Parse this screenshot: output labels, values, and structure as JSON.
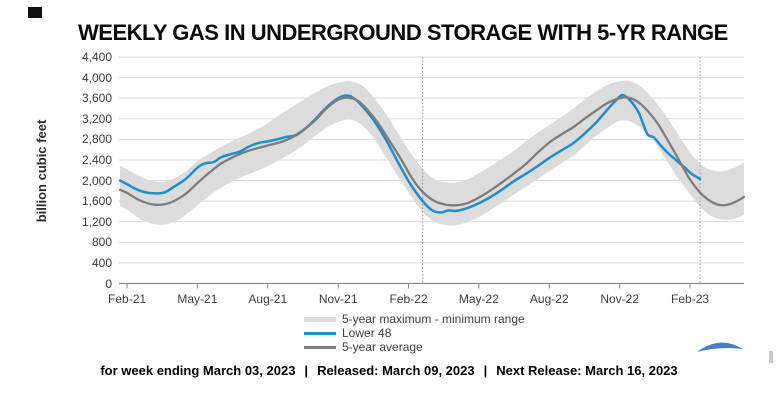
{
  "colors": {
    "lower48": "#1e8fcc",
    "avg": "#7d7d7d",
    "band": "#dcdcdc",
    "grid": "#d9d9d9",
    "axis": "#8c8c8c",
    "vline": "#9b9b9b",
    "tick_text": "#3d3d3d",
    "logo_blue": "#4a7dc9"
  },
  "legend": {
    "items": [
      {
        "label": "5-year maximum - minimum range",
        "swatch": "band"
      },
      {
        "label": "Lower 48",
        "swatch": "lower48"
      },
      {
        "label": "5-year average",
        "swatch": "avg"
      }
    ]
  },
  "footer": {
    "week_ending": "for week ending March 03, 2023",
    "released": "Released: March 09, 2023",
    "next_release": "Next Release: March 16, 2023",
    "separator": "|"
  },
  "chart_data": {
    "type": "line",
    "title": "WEEKLY GAS IN UNDERGROUND STORAGE WITH 5-YR RANGE",
    "y_axis_title": "billion cubic feet",
    "unit": "billion cubic feet (Bcf)",
    "ylim": [
      0,
      4400
    ],
    "grid": "horizontal",
    "legend_position": "bottom",
    "y_ticks": [
      {
        "label": "4,400",
        "value": 4400
      },
      {
        "label": "4,000",
        "value": 4000
      },
      {
        "label": "3,600",
        "value": 3600
      },
      {
        "label": "3,200",
        "value": 3200
      },
      {
        "label": "2,800",
        "value": 2800
      },
      {
        "label": "2,400",
        "value": 2400
      },
      {
        "label": "2,000",
        "value": 2000
      },
      {
        "label": "1,600",
        "value": 1600
      },
      {
        "label": "1,200",
        "value": 1200
      },
      {
        "label": "800",
        "value": 800
      },
      {
        "label": "400",
        "value": 400
      },
      {
        "label": "0",
        "value": 0
      }
    ],
    "x_unit": "months from Feb-21 tick",
    "x_range": [
      -0.3,
      26.3
    ],
    "x_ticks": [
      {
        "label": "Feb-21",
        "m": 0
      },
      {
        "label": "May-21",
        "m": 3
      },
      {
        "label": "Aug-21",
        "m": 6
      },
      {
        "label": "Nov-21",
        "m": 9
      },
      {
        "label": "Feb-22",
        "m": 12
      },
      {
        "label": "May-22",
        "m": 15
      },
      {
        "label": "Aug-22",
        "m": 18
      },
      {
        "label": "Nov-22",
        "m": 21
      },
      {
        "label": "Feb-23",
        "m": 24
      }
    ],
    "dotted_vlines_m": [
      12.6,
      24.43
    ],
    "series": [
      {
        "name": "5-year maximum - minimum range",
        "type": "band",
        "color_key": "band",
        "points_m_min_max": [
          [
            -0.3,
            1500,
            2280
          ],
          [
            0,
            1430,
            2220
          ],
          [
            0.5,
            1270,
            2090
          ],
          [
            1,
            1170,
            2000
          ],
          [
            1.5,
            1140,
            1970
          ],
          [
            2,
            1200,
            2040
          ],
          [
            2.5,
            1330,
            2180
          ],
          [
            3,
            1520,
            2380
          ],
          [
            3.5,
            1700,
            2520
          ],
          [
            4,
            1860,
            2650
          ],
          [
            4.5,
            1990,
            2770
          ],
          [
            5,
            2090,
            2870
          ],
          [
            5.5,
            2180,
            2980
          ],
          [
            6,
            2280,
            3120
          ],
          [
            6.5,
            2400,
            3270
          ],
          [
            7,
            2530,
            3420
          ],
          [
            7.5,
            2680,
            3560
          ],
          [
            8,
            2860,
            3700
          ],
          [
            8.5,
            3020,
            3820
          ],
          [
            9,
            3140,
            3900
          ],
          [
            9.5,
            3190,
            3930
          ],
          [
            10,
            3080,
            3850
          ],
          [
            10.5,
            2830,
            3620
          ],
          [
            11,
            2480,
            3320
          ],
          [
            11.5,
            2120,
            2960
          ],
          [
            12,
            1770,
            2600
          ],
          [
            12.5,
            1440,
            2280
          ],
          [
            13,
            1230,
            2060
          ],
          [
            13.5,
            1140,
            1970
          ],
          [
            14,
            1130,
            1960
          ],
          [
            14.5,
            1190,
            2020
          ],
          [
            15,
            1290,
            2140
          ],
          [
            15.5,
            1430,
            2280
          ],
          [
            16,
            1580,
            2430
          ],
          [
            16.5,
            1730,
            2580
          ],
          [
            17,
            1880,
            2760
          ],
          [
            17.5,
            2030,
            2930
          ],
          [
            18,
            2180,
            3080
          ],
          [
            18.5,
            2330,
            3230
          ],
          [
            19,
            2480,
            3390
          ],
          [
            19.5,
            2670,
            3570
          ],
          [
            20,
            2870,
            3730
          ],
          [
            20.5,
            3030,
            3860
          ],
          [
            21,
            3160,
            3930
          ],
          [
            21.5,
            3140,
            3920
          ],
          [
            22,
            2990,
            3790
          ],
          [
            22.5,
            2740,
            3540
          ],
          [
            23,
            2390,
            3240
          ],
          [
            23.5,
            2040,
            2890
          ],
          [
            24,
            1740,
            2550
          ],
          [
            24.5,
            1450,
            2300
          ],
          [
            25,
            1290,
            2190
          ],
          [
            25.5,
            1240,
            2190
          ],
          [
            26,
            1270,
            2270
          ],
          [
            26.3,
            1340,
            2350
          ]
        ]
      },
      {
        "name": "Lower 48",
        "type": "line",
        "color_key": "lower48",
        "points_m_v": [
          [
            -0.3,
            2000
          ],
          [
            0,
            1930
          ],
          [
            0.4,
            1830
          ],
          [
            0.8,
            1770
          ],
          [
            1.2,
            1750
          ],
          [
            1.6,
            1770
          ],
          [
            2,
            1880
          ],
          [
            2.5,
            2030
          ],
          [
            3,
            2250
          ],
          [
            3.3,
            2330
          ],
          [
            3.7,
            2360
          ],
          [
            4,
            2450
          ],
          [
            4.4,
            2510
          ],
          [
            4.8,
            2560
          ],
          [
            5.2,
            2660
          ],
          [
            5.6,
            2730
          ],
          [
            6,
            2760
          ],
          [
            6.4,
            2800
          ],
          [
            6.8,
            2850
          ],
          [
            7.2,
            2880
          ],
          [
            7.6,
            3010
          ],
          [
            8,
            3180
          ],
          [
            8.5,
            3420
          ],
          [
            9,
            3600
          ],
          [
            9.3,
            3650
          ],
          [
            9.6,
            3620
          ],
          [
            10,
            3460
          ],
          [
            10.5,
            3180
          ],
          [
            11,
            2820
          ],
          [
            11.5,
            2400
          ],
          [
            12,
            1990
          ],
          [
            12.4,
            1720
          ],
          [
            12.8,
            1500
          ],
          [
            13.1,
            1400
          ],
          [
            13.4,
            1380
          ],
          [
            13.7,
            1420
          ],
          [
            14,
            1410
          ],
          [
            14.4,
            1450
          ],
          [
            15,
            1560
          ],
          [
            15.5,
            1680
          ],
          [
            16,
            1830
          ],
          [
            16.5,
            1990
          ],
          [
            17,
            2130
          ],
          [
            17.5,
            2280
          ],
          [
            18,
            2440
          ],
          [
            18.5,
            2580
          ],
          [
            19,
            2720
          ],
          [
            19.5,
            2910
          ],
          [
            20,
            3130
          ],
          [
            20.5,
            3390
          ],
          [
            21,
            3630
          ],
          [
            21.2,
            3650
          ],
          [
            21.5,
            3530
          ],
          [
            21.8,
            3330
          ],
          [
            22,
            3100
          ],
          [
            22.2,
            2890
          ],
          [
            22.45,
            2840
          ],
          [
            22.7,
            2710
          ],
          [
            23,
            2560
          ],
          [
            23.4,
            2400
          ],
          [
            23.8,
            2240
          ],
          [
            24.1,
            2120
          ],
          [
            24.43,
            2030
          ]
        ]
      },
      {
        "name": "5-year average",
        "type": "line",
        "color_key": "avg",
        "points_m_v": [
          [
            -0.3,
            1820
          ],
          [
            0,
            1760
          ],
          [
            0.4,
            1650
          ],
          [
            0.8,
            1570
          ],
          [
            1.2,
            1530
          ],
          [
            1.6,
            1540
          ],
          [
            2,
            1600
          ],
          [
            2.5,
            1740
          ],
          [
            3,
            1950
          ],
          [
            3.5,
            2150
          ],
          [
            4,
            2330
          ],
          [
            4.5,
            2450
          ],
          [
            5,
            2550
          ],
          [
            5.5,
            2620
          ],
          [
            6,
            2680
          ],
          [
            6.5,
            2740
          ],
          [
            7,
            2830
          ],
          [
            7.5,
            2980
          ],
          [
            8,
            3160
          ],
          [
            8.5,
            3400
          ],
          [
            9,
            3570
          ],
          [
            9.4,
            3610
          ],
          [
            9.8,
            3560
          ],
          [
            10.2,
            3400
          ],
          [
            10.7,
            3120
          ],
          [
            11.2,
            2760
          ],
          [
            11.7,
            2400
          ],
          [
            12.1,
            2080
          ],
          [
            12.5,
            1830
          ],
          [
            13,
            1630
          ],
          [
            13.5,
            1540
          ],
          [
            14,
            1520
          ],
          [
            14.5,
            1560
          ],
          [
            15,
            1670
          ],
          [
            15.5,
            1810
          ],
          [
            16,
            1970
          ],
          [
            16.5,
            2140
          ],
          [
            17,
            2320
          ],
          [
            17.5,
            2540
          ],
          [
            18,
            2740
          ],
          [
            18.5,
            2890
          ],
          [
            19,
            3030
          ],
          [
            19.5,
            3200
          ],
          [
            20,
            3360
          ],
          [
            20.5,
            3510
          ],
          [
            21,
            3600
          ],
          [
            21.4,
            3610
          ],
          [
            21.8,
            3520
          ],
          [
            22.2,
            3350
          ],
          [
            22.6,
            3120
          ],
          [
            23,
            2820
          ],
          [
            23.5,
            2420
          ],
          [
            24,
            2020
          ],
          [
            24.4,
            1780
          ],
          [
            24.8,
            1620
          ],
          [
            25.2,
            1530
          ],
          [
            25.6,
            1530
          ],
          [
            26,
            1600
          ],
          [
            26.3,
            1680
          ]
        ]
      }
    ]
  }
}
